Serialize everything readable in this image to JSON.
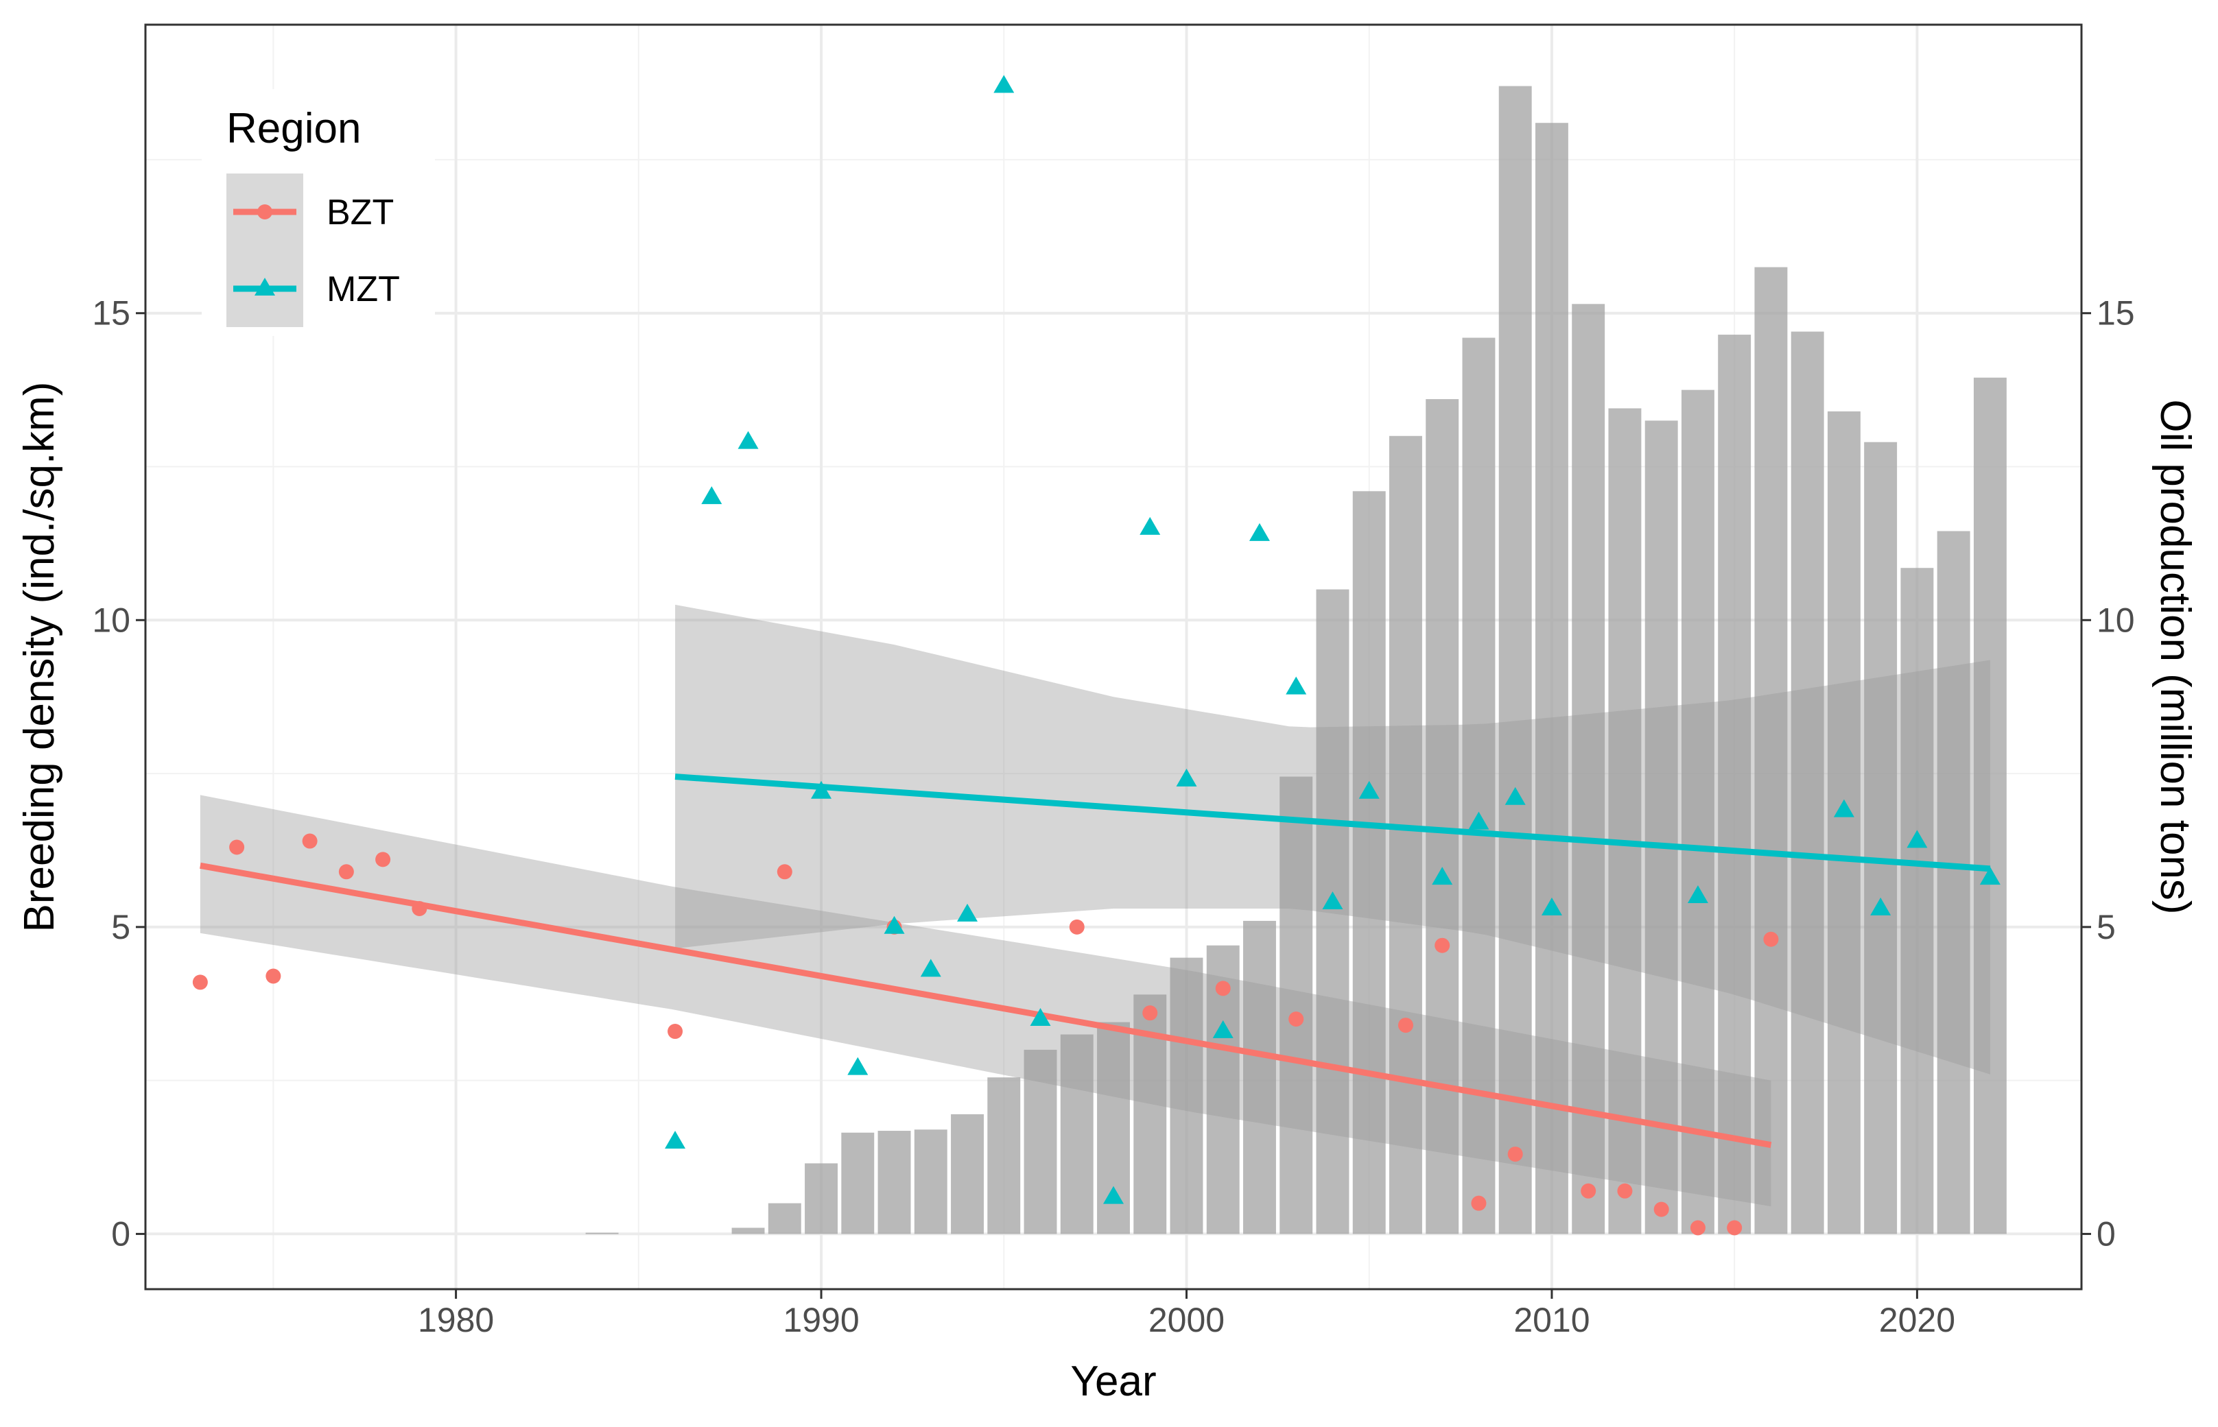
{
  "chart_data": {
    "type": "bar+scatter+line",
    "xlabel": "Year",
    "ylabel_left": "Breeding density (ind./sq.km)",
    "ylabel_right": "Oil production (million tons)",
    "xlim": [
      1971.5,
      2024.5
    ],
    "ylim": [
      -0.9,
      19.7
    ],
    "x_ticks": [
      1980,
      1990,
      2000,
      2010,
      2020
    ],
    "y_ticks": [
      0,
      5,
      10,
      15
    ],
    "legend": {
      "title": "Region",
      "position": "top-left",
      "entries": [
        {
          "label": "BZT",
          "color": "#F8766D",
          "shape": "circle"
        },
        {
          "label": "MZT",
          "color": "#00BFC4",
          "shape": "triangle"
        }
      ]
    },
    "bars": {
      "name": "Oil production",
      "color": "#9e9e9e",
      "x": [
        1984,
        1988,
        1989,
        1990,
        1991,
        1992,
        1993,
        1994,
        1995,
        1996,
        1997,
        1998,
        1999,
        2000,
        2001,
        2002,
        2003,
        2004,
        2005,
        2006,
        2007,
        2008,
        2009,
        2010,
        2011,
        2012,
        2013,
        2014,
        2015,
        2016,
        2017,
        2018,
        2019,
        2020,
        2021,
        2022
      ],
      "values": [
        0.02,
        0.1,
        0.5,
        1.15,
        1.65,
        1.68,
        1.7,
        1.95,
        2.55,
        3.0,
        3.25,
        3.45,
        3.9,
        4.5,
        4.7,
        5.1,
        7.45,
        10.5,
        12.1,
        13.0,
        13.6,
        14.6,
        18.7,
        18.1,
        15.15,
        13.45,
        13.25,
        13.75,
        14.65,
        15.75,
        14.7,
        13.4,
        12.9,
        10.85,
        11.45,
        13.95
      ]
    },
    "series": [
      {
        "name": "BZT",
        "color": "#F8766D",
        "x": [
          1973,
          1974,
          1975,
          1976,
          1977,
          1978,
          1979,
          1986,
          1989,
          1992,
          1997,
          1999,
          2001,
          2003,
          2006,
          2007,
          2008,
          2009,
          2011,
          2012,
          2013,
          2014,
          2015,
          2016
        ],
        "y": [
          4.1,
          6.3,
          4.2,
          6.4,
          5.9,
          6.1,
          5.3,
          3.3,
          5.9,
          5.0,
          5.0,
          3.6,
          4.0,
          3.5,
          3.4,
          4.7,
          0.5,
          1.3,
          0.7,
          0.7,
          0.4,
          0.1,
          0.1,
          4.8
        ],
        "fit": {
          "x": [
            1973,
            2016
          ],
          "y": [
            6.0,
            1.45
          ]
        },
        "ci": {
          "x": [
            1973,
            1986,
            2000,
            2016
          ],
          "upper": [
            7.15,
            5.65,
            4.3,
            2.5
          ],
          "lower": [
            4.9,
            3.65,
            2.0,
            0.45
          ]
        }
      },
      {
        "name": "MZT",
        "color": "#00BFC4",
        "x": [
          1986,
          1987,
          1988,
          1990,
          1991,
          1992,
          1993,
          1994,
          1995,
          1996,
          1998,
          1999,
          2000,
          2001,
          2002,
          2003,
          2004,
          2005,
          2007,
          2008,
          2009,
          2010,
          2014,
          2018,
          2019,
          2020,
          2022
        ],
        "y": [
          1.5,
          12.0,
          12.9,
          7.2,
          2.7,
          5.0,
          4.3,
          5.2,
          18.7,
          3.5,
          0.6,
          11.5,
          7.4,
          3.3,
          11.4,
          8.9,
          5.4,
          7.2,
          5.8,
          6.7,
          7.1,
          5.3,
          5.5,
          6.9,
          5.3,
          6.4,
          5.8
        ],
        "fit": {
          "x": [
            1986,
            2022
          ],
          "y": [
            7.45,
            5.95
          ]
        },
        "ci": {
          "x": [
            1986,
            1992,
            1998,
            2003,
            2008,
            2015,
            2022
          ],
          "upper": [
            10.25,
            9.6,
            8.75,
            8.25,
            8.3,
            8.7,
            9.35
          ],
          "lower": [
            4.65,
            5.05,
            5.3,
            5.3,
            4.9,
            3.9,
            2.6
          ]
        }
      }
    ]
  }
}
